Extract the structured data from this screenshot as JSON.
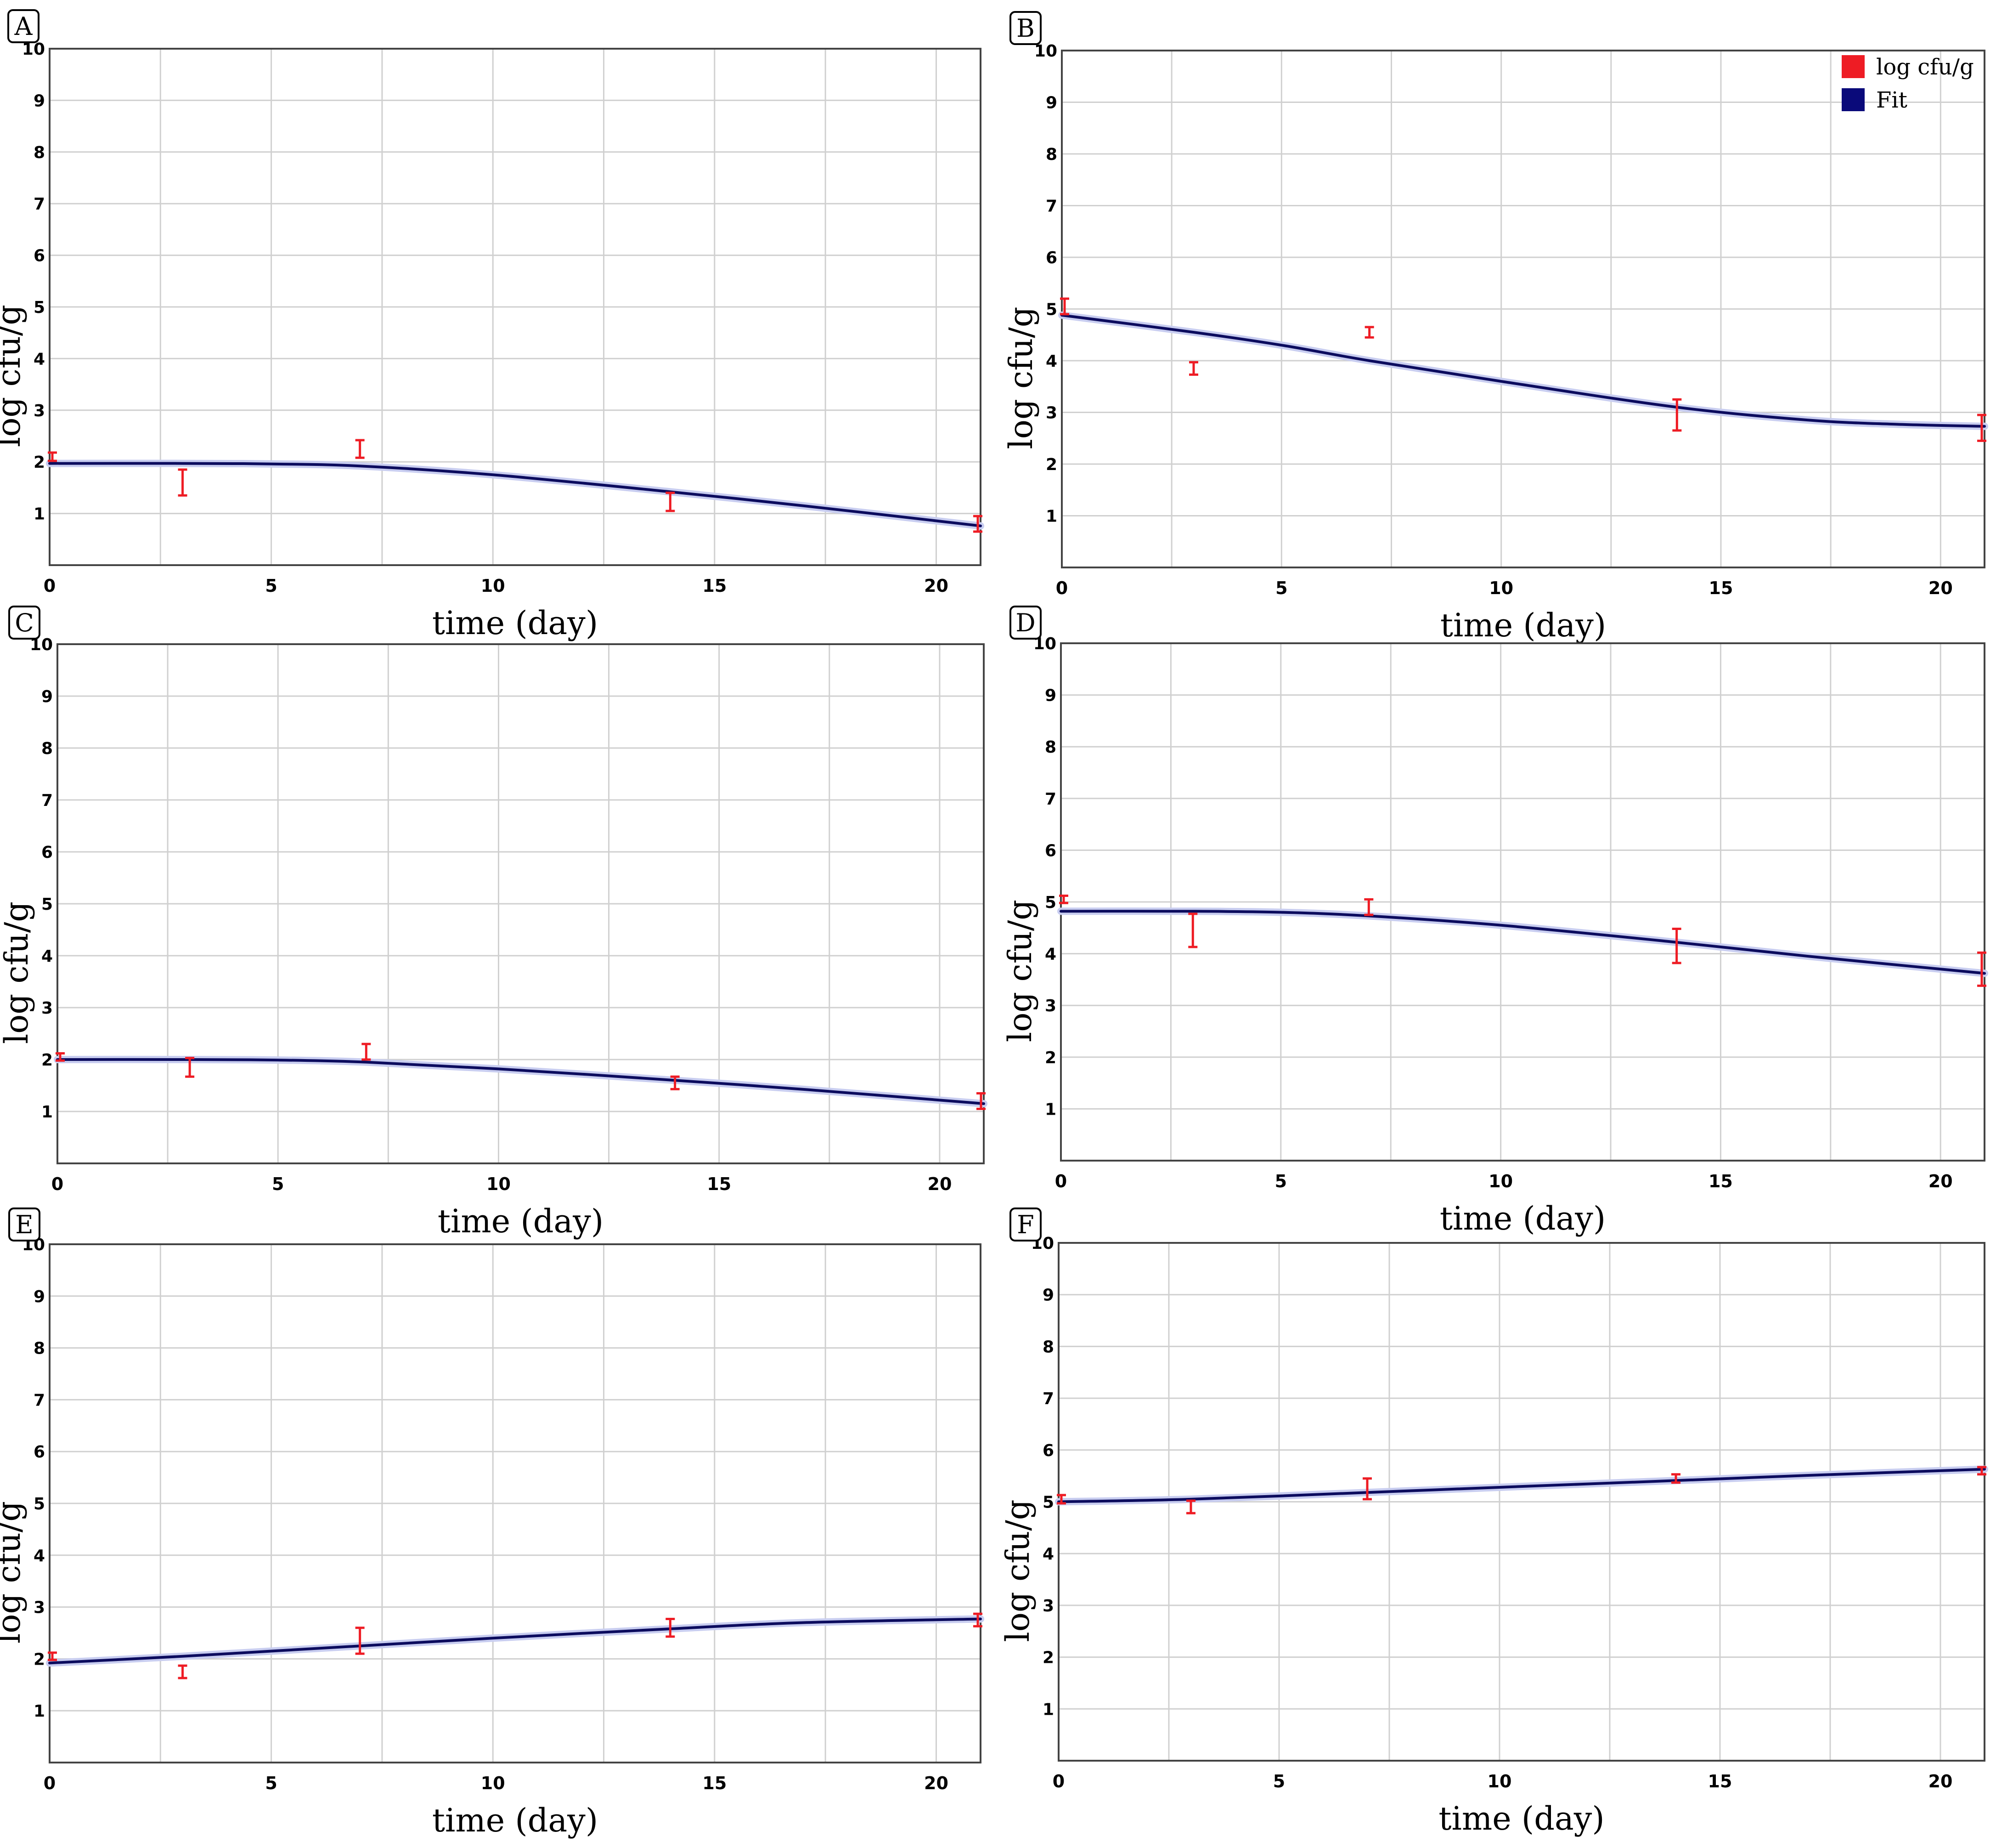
{
  "figure": {
    "legend": {
      "items": [
        {
          "label": "log cfu/g",
          "color": "#ee1c24"
        },
        {
          "label": "Fit",
          "color": "#0a0a7a"
        }
      ]
    }
  },
  "chart_data": [
    {
      "type": "scatter",
      "panel": "A",
      "title": "",
      "xlabel": "time (day)",
      "ylabel": "log cfu/g",
      "xlim": [
        0,
        21
      ],
      "ylim": [
        0,
        10
      ],
      "xticks": [
        "0",
        "5",
        "10",
        "15",
        "20"
      ],
      "yticks": [
        "1",
        "2",
        "3",
        "4",
        "5",
        "6",
        "7",
        "8",
        "9",
        "10"
      ],
      "grid": true,
      "series": [
        {
          "name": "log cfu/g",
          "x": [
            0,
            3,
            7,
            14,
            21
          ],
          "y": [
            2.1,
            1.6,
            2.25,
            1.25,
            0.8
          ],
          "err_low": [
            0.08,
            0.25,
            0.17,
            0.2,
            0.15
          ],
          "err_high": [
            0.08,
            0.25,
            0.17,
            0.15,
            0.15
          ]
        },
        {
          "name": "Fit",
          "x": [
            0,
            3,
            5,
            7,
            10,
            14,
            17,
            21
          ],
          "y": [
            1.97,
            1.97,
            1.96,
            1.92,
            1.75,
            1.42,
            1.15,
            0.76
          ]
        }
      ]
    },
    {
      "type": "scatter",
      "panel": "B",
      "title": "",
      "xlabel": "time (day)",
      "ylabel": "log cfu/g",
      "xlim": [
        0,
        21
      ],
      "ylim": [
        0,
        10
      ],
      "xticks": [
        "0",
        "5",
        "10",
        "15",
        "20"
      ],
      "yticks": [
        "1",
        "2",
        "3",
        "4",
        "5",
        "6",
        "7",
        "8",
        "9",
        "10"
      ],
      "grid": true,
      "legend_position": "top-right",
      "series": [
        {
          "name": "log cfu/g",
          "x": [
            0,
            3,
            7,
            14,
            21
          ],
          "y": [
            5.05,
            3.85,
            4.55,
            2.95,
            2.7
          ],
          "err_low": [
            0.15,
            0.12,
            0.1,
            0.3,
            0.25
          ],
          "err_high": [
            0.15,
            0.12,
            0.1,
            0.3,
            0.25
          ]
        },
        {
          "name": "Fit",
          "x": [
            0,
            3,
            5,
            7,
            10,
            14,
            17,
            19,
            21
          ],
          "y": [
            4.88,
            4.55,
            4.3,
            4.0,
            3.6,
            3.1,
            2.85,
            2.77,
            2.73
          ]
        }
      ]
    },
    {
      "type": "scatter",
      "panel": "C",
      "title": "",
      "xlabel": "time (day)",
      "ylabel": "log cfu/g",
      "xlim": [
        0,
        21
      ],
      "ylim": [
        0,
        10
      ],
      "xticks": [
        "0",
        "5",
        "10",
        "15",
        "20"
      ],
      "yticks": [
        "1",
        "2",
        "3",
        "4",
        "5",
        "6",
        "7",
        "8",
        "9",
        "10"
      ],
      "grid": true,
      "series": [
        {
          "name": "log cfu/g",
          "x": [
            0,
            3,
            7,
            14,
            21
          ],
          "y": [
            2.05,
            1.85,
            2.15,
            1.55,
            1.2
          ],
          "err_low": [
            0.07,
            0.18,
            0.15,
            0.12,
            0.15
          ],
          "err_high": [
            0.07,
            0.18,
            0.15,
            0.12,
            0.15
          ]
        },
        {
          "name": "Fit",
          "x": [
            0,
            3,
            5,
            7,
            10,
            14,
            17,
            21
          ],
          "y": [
            2.0,
            2.0,
            1.99,
            1.95,
            1.82,
            1.6,
            1.42,
            1.15
          ]
        }
      ]
    },
    {
      "type": "scatter",
      "panel": "D",
      "title": "",
      "xlabel": "time (day)",
      "ylabel": "log cfu/g",
      "xlim": [
        0,
        21
      ],
      "ylim": [
        0,
        10
      ],
      "xticks": [
        "0",
        "5",
        "10",
        "15",
        "20"
      ],
      "yticks": [
        "1",
        "2",
        "3",
        "4",
        "5",
        "6",
        "7",
        "8",
        "9",
        "10"
      ],
      "grid": true,
      "series": [
        {
          "name": "log cfu/g",
          "x": [
            0,
            3,
            7,
            14,
            21
          ],
          "y": [
            5.05,
            4.45,
            4.9,
            4.15,
            3.7
          ],
          "err_low": [
            0.07,
            0.32,
            0.15,
            0.33,
            0.32
          ],
          "err_high": [
            0.07,
            0.32,
            0.15,
            0.33,
            0.32
          ]
        },
        {
          "name": "Fit",
          "x": [
            0,
            3,
            5,
            7,
            10,
            14,
            17,
            21
          ],
          "y": [
            4.82,
            4.82,
            4.8,
            4.73,
            4.55,
            4.22,
            3.95,
            3.62
          ]
        }
      ]
    },
    {
      "type": "scatter",
      "panel": "E",
      "title": "",
      "xlabel": "time (day)",
      "ylabel": "log cfu/g",
      "xlim": [
        0,
        21
      ],
      "ylim": [
        0,
        10
      ],
      "xticks": [
        "0",
        "5",
        "10",
        "15",
        "20"
      ],
      "yticks": [
        "1",
        "2",
        "3",
        "4",
        "5",
        "6",
        "7",
        "8",
        "9",
        "10"
      ],
      "grid": true,
      "series": [
        {
          "name": "log cfu/g",
          "x": [
            0,
            3,
            7,
            14,
            21
          ],
          "y": [
            2.05,
            1.75,
            2.35,
            2.6,
            2.75
          ],
          "err_low": [
            0.07,
            0.12,
            0.25,
            0.17,
            0.12
          ],
          "err_high": [
            0.07,
            0.12,
            0.25,
            0.17,
            0.12
          ]
        },
        {
          "name": "Fit",
          "x": [
            0,
            3,
            5,
            7,
            10,
            14,
            17,
            21
          ],
          "y": [
            1.92,
            2.05,
            2.15,
            2.25,
            2.4,
            2.58,
            2.7,
            2.77
          ]
        }
      ]
    },
    {
      "type": "scatter",
      "panel": "F",
      "title": "",
      "xlabel": "time (day)",
      "ylabel": "log cfu/g",
      "xlim": [
        0,
        21
      ],
      "ylim": [
        0,
        10
      ],
      "xticks": [
        "0",
        "5",
        "10",
        "15",
        "20"
      ],
      "yticks": [
        "1",
        "2",
        "3",
        "4",
        "5",
        "6",
        "7",
        "8",
        "9",
        "10"
      ],
      "grid": true,
      "series": [
        {
          "name": "log cfu/g",
          "x": [
            0,
            3,
            7,
            14,
            21
          ],
          "y": [
            5.05,
            4.9,
            5.25,
            5.45,
            5.6
          ],
          "err_low": [
            0.08,
            0.12,
            0.2,
            0.08,
            0.07
          ],
          "err_high": [
            0.08,
            0.12,
            0.2,
            0.08,
            0.07
          ]
        },
        {
          "name": "Fit",
          "x": [
            0,
            3,
            7,
            10,
            14,
            17,
            21
          ],
          "y": [
            5.0,
            5.05,
            5.18,
            5.28,
            5.41,
            5.51,
            5.63
          ]
        }
      ]
    }
  ]
}
